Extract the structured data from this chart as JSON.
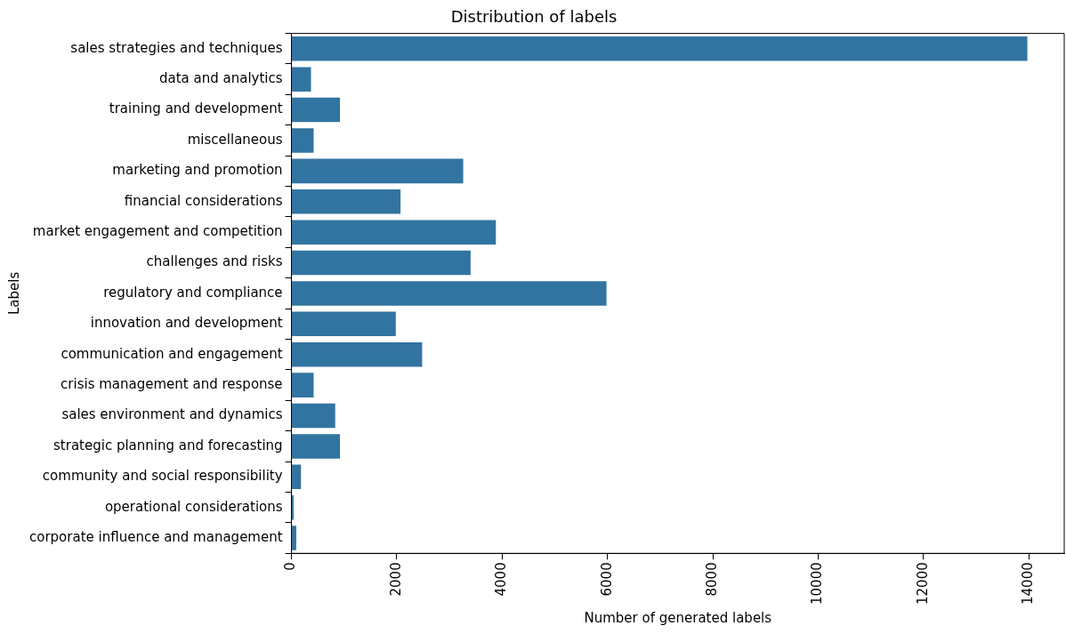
{
  "chart_data": {
    "type": "bar",
    "orientation": "horizontal",
    "title": "Distribution of labels",
    "xlabel": "Number of generated labels",
    "ylabel": "Labels",
    "categories": [
      "sales strategies and techniques",
      "data and analytics",
      "training and development",
      "miscellaneous",
      "marketing and promotion",
      "financial considerations",
      "market engagement and competition",
      "challenges and risks",
      "regulatory and compliance",
      "innovation and development",
      "communication and engagement",
      "crisis management and response",
      "sales environment and dynamics",
      "strategic planning and forecasting",
      "community and social responsibility",
      "operational considerations",
      "corporate influence and management"
    ],
    "values": [
      13970,
      370,
      920,
      420,
      3260,
      2070,
      3880,
      3400,
      5980,
      1980,
      2480,
      420,
      830,
      920,
      180,
      40,
      90
    ],
    "color": "#3274a1",
    "xlim": [
      0,
      14670
    ],
    "xticks": [
      0,
      2000,
      4000,
      6000,
      8000,
      10000,
      12000,
      14000
    ],
    "grid": false,
    "legend": false
  }
}
